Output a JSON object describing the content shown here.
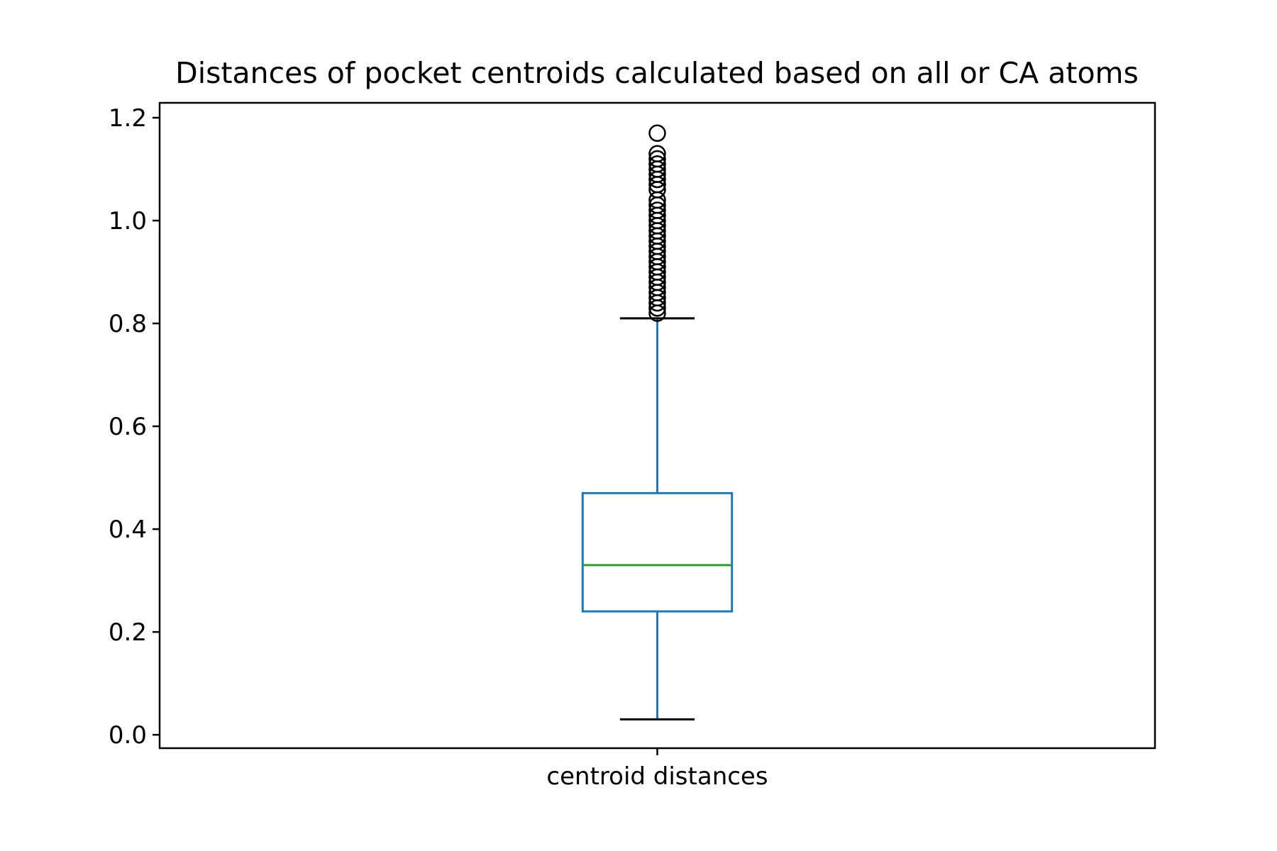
{
  "chart_data": {
    "type": "box",
    "title": "Distances of pocket centroids calculated based on all or CA atoms",
    "xlabel": "",
    "ylabel": "",
    "categories": [
      "centroid distances"
    ],
    "ylim": [
      -0.026,
      1.229
    ],
    "yticks": [
      0.0,
      0.2,
      0.4,
      0.6,
      0.8,
      1.0,
      1.2
    ],
    "ytick_labels": [
      "0.0",
      "0.2",
      "0.4",
      "0.6",
      "0.8",
      "1.0",
      "1.2"
    ],
    "grid": false,
    "legend": "none",
    "boxes": [
      {
        "name": "centroid distances",
        "whisker_low": 0.03,
        "q1": 0.24,
        "median": 0.33,
        "q3": 0.47,
        "whisker_high": 0.81,
        "outliers": [
          0.82,
          0.83,
          0.84,
          0.85,
          0.86,
          0.87,
          0.88,
          0.89,
          0.9,
          0.91,
          0.92,
          0.93,
          0.94,
          0.95,
          0.96,
          0.97,
          0.98,
          0.99,
          1.0,
          1.01,
          1.02,
          1.03,
          1.04,
          1.06,
          1.07,
          1.08,
          1.09,
          1.1,
          1.11,
          1.12,
          1.13,
          1.17
        ]
      }
    ],
    "colors": {
      "box": "#1f77b4",
      "median": "#2ca02c",
      "caps": "#000000",
      "outlier_edge": "#000000"
    }
  }
}
